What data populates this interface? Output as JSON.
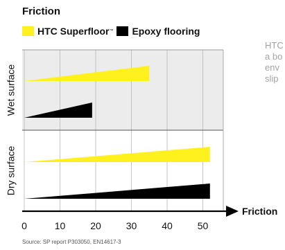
{
  "chart_data": {
    "type": "bar",
    "title": "Friction",
    "xlabel": "Friction",
    "xlim": [
      0,
      56
    ],
    "xticks": [
      0,
      10,
      20,
      30,
      40,
      50
    ],
    "categories": [
      "Wet surface",
      "Dry surface"
    ],
    "series": [
      {
        "name": "HTC Superfloor",
        "trademark": "™",
        "color": "#fff11e",
        "values": [
          35,
          52
        ]
      },
      {
        "name": "Epoxy flooring",
        "color": "#000000",
        "values": [
          19,
          52
        ]
      }
    ],
    "bar_shape": "wedge",
    "panel_colors": {
      "Wet surface": "#ececec",
      "Dry surface": "#ffffff"
    },
    "legend_position": "top-left",
    "grid": "vertical"
  },
  "side_text": [
    "HTC",
    "a bo",
    "env",
    "slip"
  ],
  "source": "Source: SP report P303050, EN14617-3"
}
